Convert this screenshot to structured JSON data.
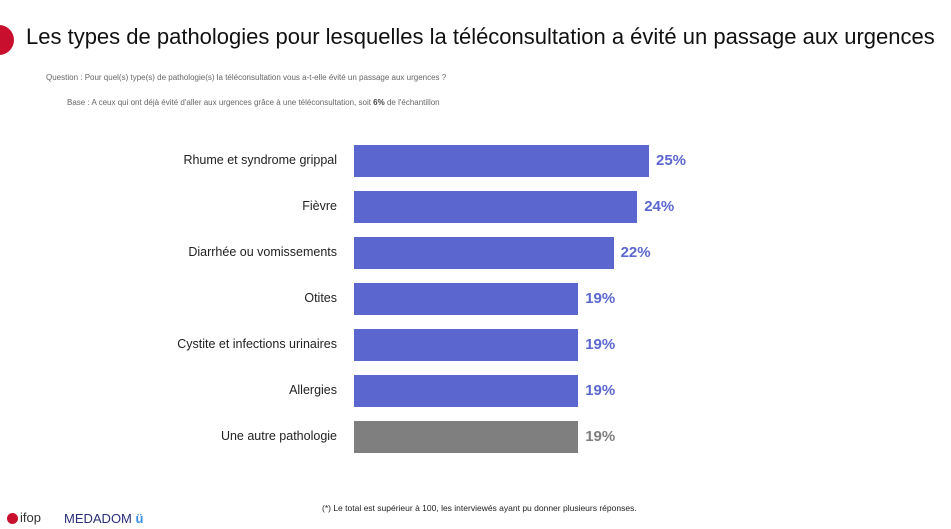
{
  "title": "Les types de pathologies pour lesquelles la téléconsultation a évité un passage aux urgences",
  "question": "Question : Pour quel(s) type(s) de pathologie(s) la téléconsultation vous a-t-elle évité un passage aux urgences ?",
  "base_prefix": "Base : A ceux qui ont déjà évité d'aller aux urgences grâce à une téléconsultation, soit ",
  "base_bold": "6%",
  "base_suffix": " de l'échantillon",
  "footnote": "(*) Le total est supérieur à 100, les interviewés ayant pu donner plusieurs réponses.",
  "logos": {
    "ifop": "ifop",
    "medadom": "MEDADOM",
    "medadom_mark": "ü"
  },
  "colors": {
    "accent": "#5b67cf",
    "other": "#7f7f7f",
    "brand_red": "#c8102e"
  },
  "chart_data": {
    "type": "bar",
    "orientation": "horizontal",
    "categories": [
      "Rhume et syndrome grippal",
      "Fièvre",
      "Diarrhée ou vomissements",
      "Otites",
      "Cystite et infections urinaires",
      "Allergies",
      "Une autre pathologie"
    ],
    "values": [
      25,
      24,
      22,
      19,
      19,
      19,
      19
    ],
    "labels": [
      "25%",
      "24%",
      "22%",
      "19%",
      "19%",
      "19%",
      "19%"
    ],
    "unit": "%"
  }
}
